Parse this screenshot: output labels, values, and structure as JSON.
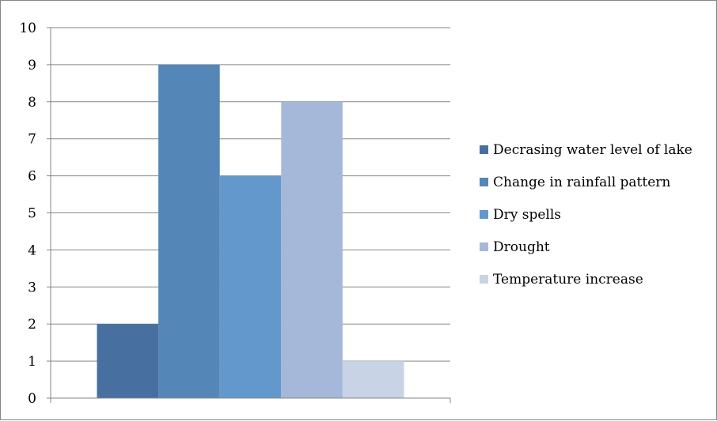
{
  "chart_data": {
    "type": "bar",
    "title": "",
    "xlabel": "",
    "ylabel": "",
    "ylim": [
      0,
      10
    ],
    "yticks": [
      0,
      1,
      2,
      3,
      4,
      5,
      6,
      7,
      8,
      9,
      10
    ],
    "grid": true,
    "legend_position": "right",
    "series": [
      {
        "name": "Decrasing water level of lake",
        "value": 2,
        "color": "#4770A1"
      },
      {
        "name": "Change in rainfall pattern",
        "value": 9,
        "color": "#5586B8"
      },
      {
        "name": "Dry spells",
        "value": 6,
        "color": "#6398CC"
      },
      {
        "name": "Drought",
        "value": 8,
        "color": "#A5B8D9"
      },
      {
        "name": "Temperature increase",
        "value": 1,
        "color": "#C8D3E6"
      }
    ]
  }
}
